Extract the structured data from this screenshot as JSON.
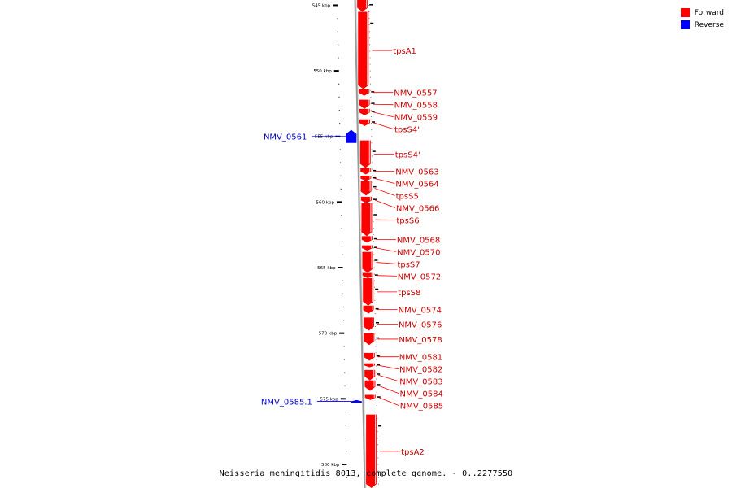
{
  "legend": {
    "items": [
      {
        "label": "Forward",
        "color": "#ff0000"
      },
      {
        "label": "Reverse",
        "color": "#0000ff"
      }
    ]
  },
  "caption": "Neisseria meningitidis 8013, complete genome. - 0..2277550",
  "colors": {
    "forward": "#ff0000",
    "forward_label": "#cc0000",
    "reverse": "#0000ff",
    "reverse_label": "#0000cc",
    "axis": "#999999"
  },
  "chart_data": {
    "type": "genome-map",
    "axis_unit": "kbp",
    "axis_range": [
      544.6,
      581.8
    ],
    "ticks": [
      {
        "label": "545 kbp",
        "pos": 545
      },
      {
        "label": "550 kbp",
        "pos": 550
      },
      {
        "label": "555 kbp",
        "pos": 555
      },
      {
        "label": "560 kbp",
        "pos": 560
      },
      {
        "label": "565 kbp",
        "pos": 565
      },
      {
        "label": "570 kbp",
        "pos": 570
      },
      {
        "label": "575 kbp",
        "pos": 575
      },
      {
        "label": "580 kbp",
        "pos": 580
      }
    ],
    "features": [
      {
        "name": "",
        "strand": "+",
        "start": 544.6,
        "end": 545.5
      },
      {
        "name": "tpsA1",
        "strand": "+",
        "start": 545.5,
        "end": 551.4
      },
      {
        "name": "NMV_0557",
        "strand": "+",
        "start": 551.4,
        "end": 551.9
      },
      {
        "name": "NMV_0558",
        "strand": "+",
        "start": 552.2,
        "end": 552.9
      },
      {
        "name": "NMV_0559",
        "strand": "+",
        "start": 552.9,
        "end": 553.4
      },
      {
        "name": "tpsS4'",
        "strand": "+",
        "start": 553.7,
        "end": 554.2
      },
      {
        "name": "NMV_0561",
        "strand": "-",
        "start": 554.5,
        "end": 555.5
      },
      {
        "name": "tpsS4'",
        "strand": "+",
        "start": 555.3,
        "end": 557.4
      },
      {
        "name": "NMV_0563",
        "strand": "+",
        "start": 557.4,
        "end": 557.9
      },
      {
        "name": "NMV_0564",
        "strand": "+",
        "start": 558.0,
        "end": 558.4
      },
      {
        "name": "tpsS5",
        "strand": "+",
        "start": 558.4,
        "end": 559.5
      },
      {
        "name": "NMV_0566",
        "strand": "+",
        "start": 559.6,
        "end": 560.1
      },
      {
        "name": "tpsS6",
        "strand": "+",
        "start": 560.1,
        "end": 562.6
      },
      {
        "name": "NMV_0568",
        "strand": "+",
        "start": 562.6,
        "end": 563.1
      },
      {
        "name": "NMV_0570",
        "strand": "+",
        "start": 563.3,
        "end": 563.7
      },
      {
        "name": "tpsS7",
        "strand": "+",
        "start": 563.8,
        "end": 565.4
      },
      {
        "name": "NMV_0572",
        "strand": "+",
        "start": 565.4,
        "end": 565.8
      },
      {
        "name": "tpsS8",
        "strand": "+",
        "start": 565.8,
        "end": 567.9
      },
      {
        "name": "NMV_0574",
        "strand": "+",
        "start": 567.9,
        "end": 568.5
      },
      {
        "name": "NMV_0576",
        "strand": "+",
        "start": 568.8,
        "end": 569.8
      },
      {
        "name": "NMV_0578",
        "strand": "+",
        "start": 570.0,
        "end": 570.9
      },
      {
        "name": "NMV_0581",
        "strand": "+",
        "start": 571.5,
        "end": 572.1
      },
      {
        "name": "NMV_0582",
        "strand": "+",
        "start": 572.3,
        "end": 572.6
      },
      {
        "name": "NMV_0583",
        "strand": "+",
        "start": 572.8,
        "end": 573.6
      },
      {
        "name": "NMV_0584",
        "strand": "+",
        "start": 573.6,
        "end": 574.4
      },
      {
        "name": "NMV_0585",
        "strand": "+",
        "start": 574.7,
        "end": 575.1
      },
      {
        "name": "NMV_0585.1",
        "strand": "-",
        "start": 575.1,
        "end": 575.3
      },
      {
        "name": "tpsA2",
        "strand": "+",
        "start": 576.2,
        "end": 581.8
      }
    ]
  }
}
